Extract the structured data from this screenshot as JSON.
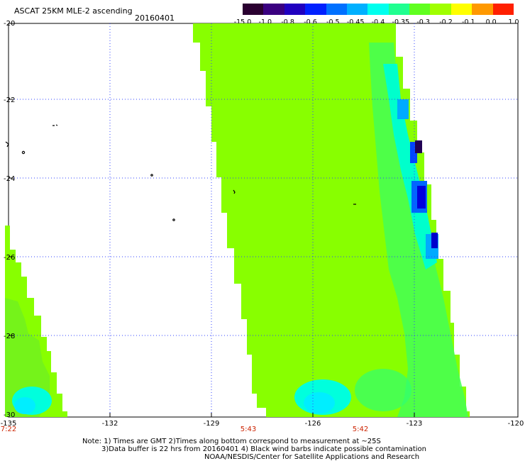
{
  "header": {
    "title": "ASCAT 25KM MLE-2 ascending",
    "date": "20160401"
  },
  "colorbar": {
    "labels": [
      "-15.0",
      "-1.0",
      "-0.8",
      "-0.6",
      "-0.5",
      "-0.45",
      "-0.4",
      "-0.35",
      "-0.3",
      "-0.2",
      "-0.1",
      "0.0",
      "1.0"
    ],
    "colors": [
      "#2a0030",
      "#3a0080",
      "#2000c0",
      "#0020ff",
      "#0070ff",
      "#00b0ff",
      "#00ffee",
      "#20ff90",
      "#60ff20",
      "#a0ff00",
      "#ffff00",
      "#ff9900",
      "#ff2000"
    ]
  },
  "axes": {
    "y_labels": [
      "-20",
      "-22",
      "-24",
      "-26",
      "-28",
      "-30"
    ],
    "x_labels": [
      "-135",
      "-132",
      "-129",
      "-126",
      "-123",
      "-120"
    ],
    "time_labels": [
      "7:22",
      "5:43",
      "5:42"
    ]
  },
  "map": {
    "swath_fill": "#88ff00",
    "highlight_fill": "#00ffdd",
    "strong_fill": "#0000cc",
    "grid_color": "#3344ff"
  },
  "footer": {
    "note_line1": "Note:  1) Times are GMT  2)Times along bottom correspond to measurement at ~25S",
    "note_line2": "3)Data buffer is 22 hrs from 20160401  4) Black wind barbs indicate possible contamination",
    "note_line3": "NOAA/NESDIS/Center for Satellite Applications and Research"
  }
}
